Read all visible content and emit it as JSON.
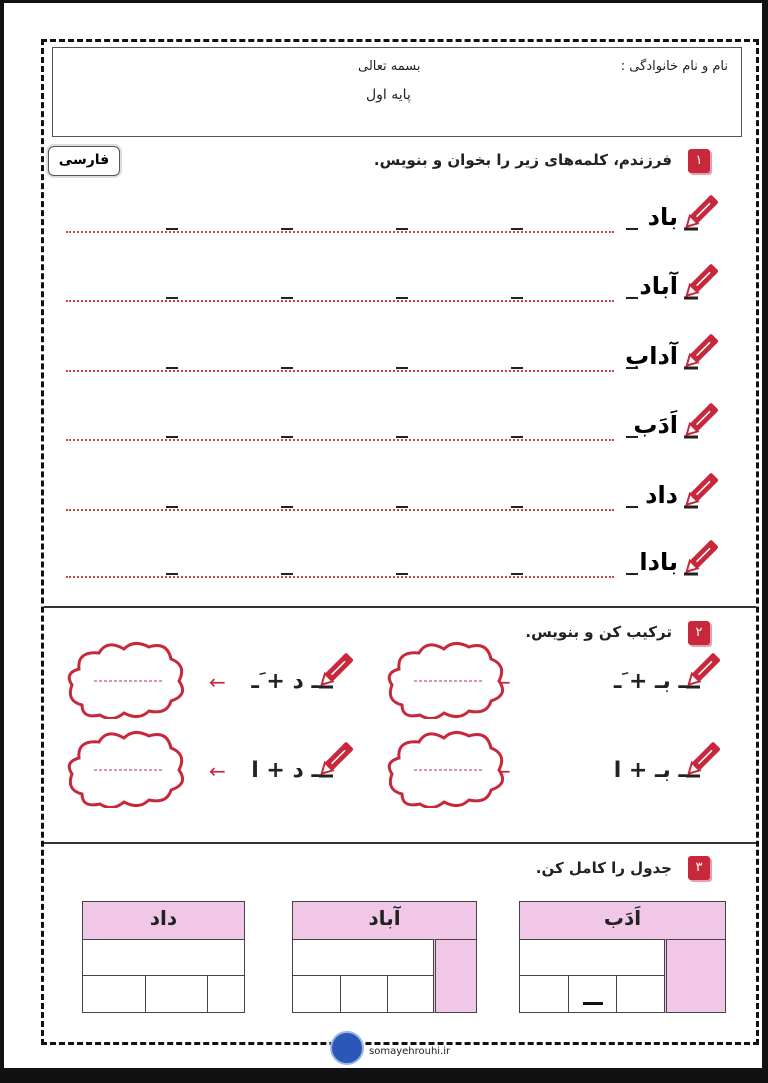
{
  "header": {
    "name_label": "نام و نام خانوادگی :",
    "bismillah": "بسمه تعالی",
    "grade": "پایه اول"
  },
  "subject": "فارسی",
  "q1": {
    "number": "۱",
    "title": "فرزندم، کلمه‌های زیر را بخوان و بنویس.",
    "words": [
      "باد",
      "آباد",
      "آداب",
      "اَدَب",
      "داد",
      "بادا"
    ]
  },
  "q2": {
    "number": "۲",
    "title": "ترکیب کن و بنویس.",
    "items": [
      {
        "expr": "ـ بـ  +  َـ"
      },
      {
        "expr": "ـ د + َـ"
      },
      {
        "expr": "ـ بـ  +  ا"
      },
      {
        "expr": "ـ د + ا"
      }
    ]
  },
  "q3": {
    "number": "۳",
    "title": "جدول را کامل کن.",
    "tables": [
      "اَدَب",
      "آباد",
      "داد"
    ]
  },
  "footer": {
    "site": "somayehrouhi.ir"
  },
  "colors": {
    "accent": "#c8283c",
    "table_header": "#f0c7e6"
  }
}
